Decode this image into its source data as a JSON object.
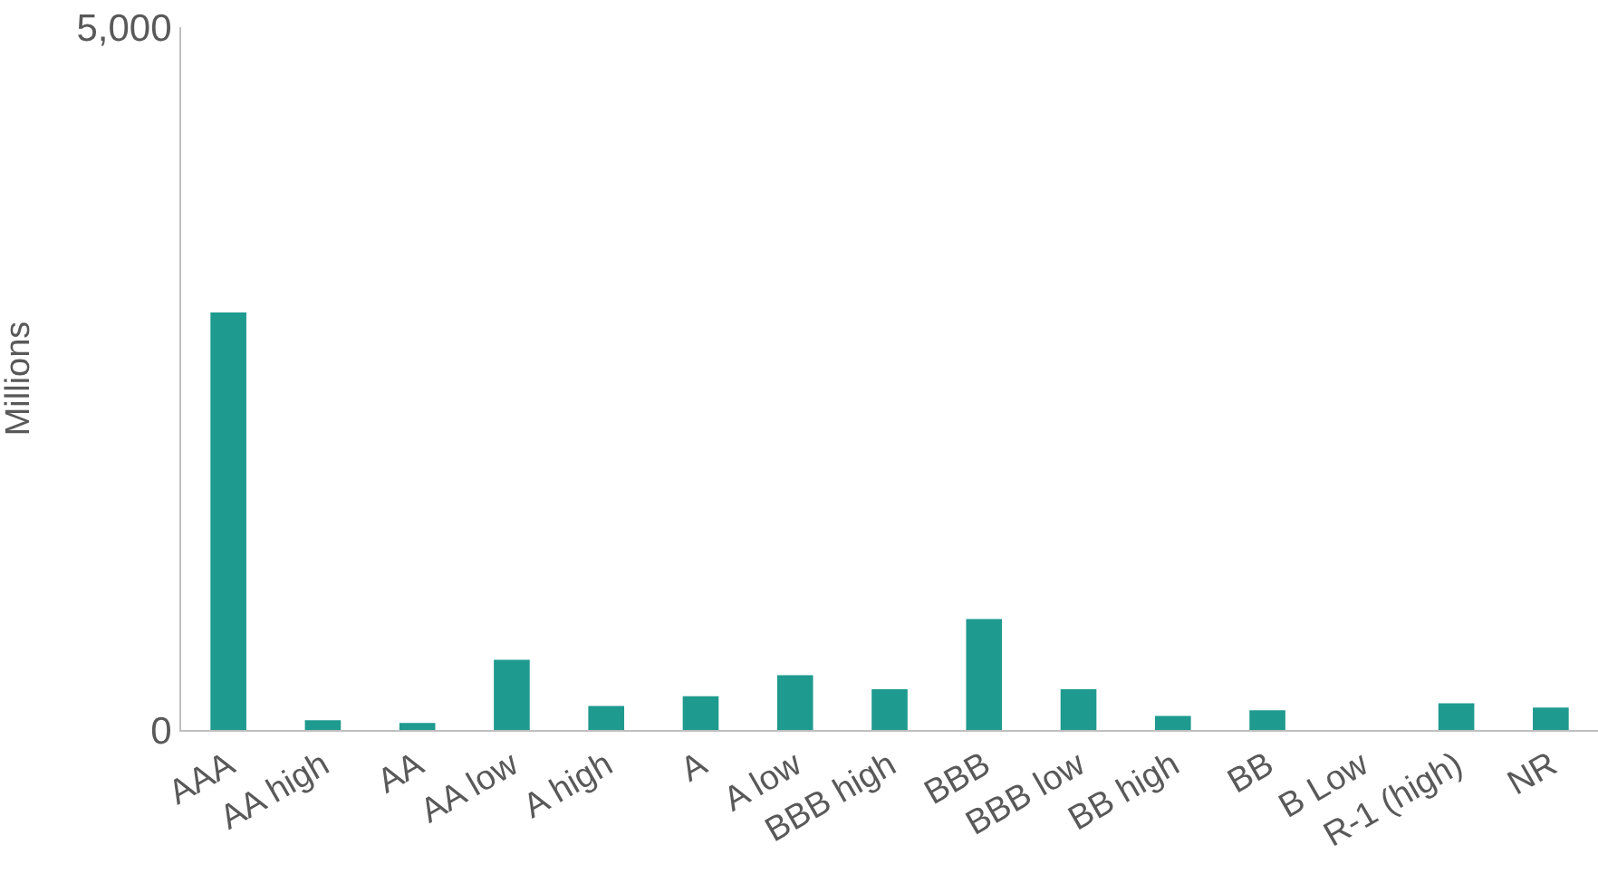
{
  "chart_data": {
    "type": "bar",
    "ylabel": "Millions",
    "categories": [
      "AAA",
      "AA high",
      "AA",
      "AA low",
      "A high",
      "A",
      "A low",
      "BBB high",
      "BBB",
      "BBB low",
      "BB high",
      "BB",
      "B Low",
      "R-1 (high)",
      "NR"
    ],
    "values": [
      2970,
      70,
      50,
      500,
      170,
      240,
      390,
      290,
      790,
      290,
      100,
      140,
      0,
      190,
      160
    ],
    "color": "#1f9a8f",
    "ylim": [
      0,
      5000
    ],
    "yticks": [
      0,
      {
        "value": 5000,
        "label": "5,000"
      }
    ]
  }
}
